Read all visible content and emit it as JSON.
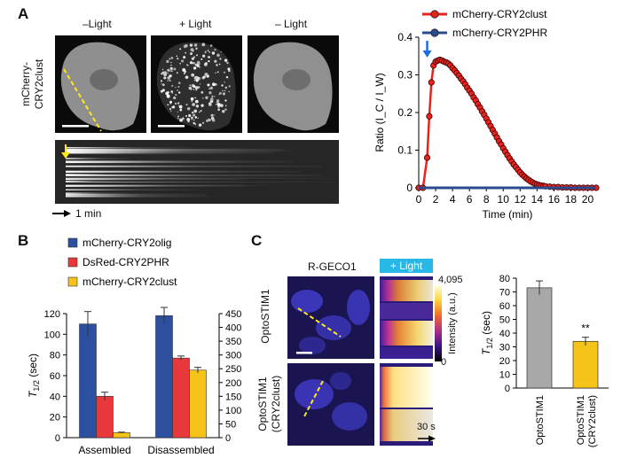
{
  "panels": {
    "a": "A",
    "b": "B",
    "c": "C"
  },
  "panel_a": {
    "condition_labels": [
      "–Light",
      "+ Light",
      "– Light"
    ],
    "row_label_line1": "mCherry-",
    "row_label_line2": "CRY2clust",
    "time_scale_label": "1 min"
  },
  "panel_c": {
    "column_label": "R-GECO1",
    "light_label": "+ Light",
    "row1_label": "OptoSTIM1",
    "row2_label_line1": "OptoSTIM1",
    "row2_label_line2": "(CRY2clust)",
    "colorbar_max": "4,095",
    "colorbar_min": "0",
    "colorbar_label": "Intensity (a.u.)",
    "time_scale_label": "30 s"
  },
  "chart_data": [
    {
      "id": "A-line",
      "type": "line",
      "xlabel": "Time (min)",
      "ylabel": "Ratio (I_C / I_W)",
      "xlim": [
        0,
        21
      ],
      "ylim": [
        0,
        0.4
      ],
      "xticks": [
        0,
        2,
        4,
        6,
        8,
        10,
        12,
        14,
        16,
        18,
        20
      ],
      "yticks": [
        0,
        0.1,
        0.2,
        0.3,
        0.4
      ],
      "legend_position": "top",
      "series": [
        {
          "name": "mCherry-CRY2clust",
          "color": "#e8231e",
          "x": [
            0,
            0.5,
            1,
            1.25,
            1.5,
            1.75,
            2,
            2.25,
            2.5,
            2.75,
            3,
            3.25,
            3.5,
            3.75,
            4,
            4.25,
            4.5,
            4.75,
            5,
            5.25,
            5.5,
            5.75,
            6,
            6.25,
            6.5,
            6.75,
            7,
            7.25,
            7.5,
            7.75,
            8,
            8.25,
            8.5,
            8.75,
            9,
            9.25,
            9.5,
            9.75,
            10,
            10.25,
            10.5,
            10.75,
            11,
            11.25,
            11.5,
            11.75,
            12,
            12.25,
            12.5,
            12.75,
            13,
            13.25,
            13.5,
            13.75,
            14,
            14.25,
            14.5,
            14.75,
            15,
            15.5,
            16,
            16.5,
            17,
            17.5,
            18,
            18.5,
            19,
            19.5,
            20,
            20.5,
            21
          ],
          "values": [
            0,
            0,
            0.08,
            0.19,
            0.28,
            0.325,
            0.335,
            0.338,
            0.34,
            0.338,
            0.335,
            0.333,
            0.33,
            0.325,
            0.318,
            0.312,
            0.305,
            0.298,
            0.29,
            0.283,
            0.275,
            0.266,
            0.258,
            0.25,
            0.24,
            0.232,
            0.222,
            0.213,
            0.203,
            0.194,
            0.184,
            0.174,
            0.164,
            0.154,
            0.144,
            0.134,
            0.124,
            0.115,
            0.105,
            0.096,
            0.087,
            0.078,
            0.07,
            0.062,
            0.055,
            0.048,
            0.041,
            0.035,
            0.03,
            0.025,
            0.021,
            0.017,
            0.014,
            0.011,
            0.009,
            0.007,
            0.006,
            0.005,
            0.004,
            0.003,
            0.002,
            0.002,
            0.001,
            0.001,
            0.001,
            0,
            0,
            0,
            0,
            0,
            0
          ]
        },
        {
          "name": "mCherry-CRY2PHR",
          "color": "#2a4b8d",
          "x": [
            0,
            21
          ],
          "values": [
            0,
            0
          ]
        }
      ],
      "annotation": "light-onset arrow at 1 min"
    },
    {
      "id": "B-bar",
      "type": "bar",
      "categories": [
        "Assembled",
        "Disassembled"
      ],
      "ylabel_left": "T1/2 (sec)",
      "ylim_left": [
        0,
        120
      ],
      "yticks_left": [
        0,
        20,
        40,
        60,
        80,
        100,
        120
      ],
      "ylim_right": [
        0,
        450
      ],
      "yticks_right": [
        0,
        50,
        100,
        150,
        200,
        250,
        300,
        350,
        400,
        450
      ],
      "legend_position": "top",
      "series": [
        {
          "name": "mCherry-CRY2olig",
          "color": "#2d4fa0",
          "axis": "left",
          "values": [
            110,
            118
          ],
          "errors": [
            12,
            8
          ]
        },
        {
          "name": "DsRed-CRY2PHR",
          "color": "#e8383b",
          "axis": "left",
          "values": [
            40,
            77
          ],
          "errors": [
            4,
            2
          ]
        },
        {
          "name": "mCherry-CRY2clust",
          "color": "#f6c318",
          "axis": "right",
          "values": [
            18,
            245
          ],
          "errors": [
            2,
            10
          ]
        }
      ]
    },
    {
      "id": "C-bar",
      "type": "bar",
      "categories": [
        "OptoSTIM1",
        "OptoSTIM1\n(CRY2clust)"
      ],
      "ylabel": "T1/2 (sec)",
      "ylim": [
        0,
        80
      ],
      "yticks": [
        0,
        10,
        20,
        30,
        40,
        50,
        60,
        70,
        80
      ],
      "values": [
        73,
        34
      ],
      "errors": [
        5,
        3
      ],
      "colors": [
        "#a8a8a8",
        "#f6c318"
      ],
      "annotation": "**"
    }
  ]
}
